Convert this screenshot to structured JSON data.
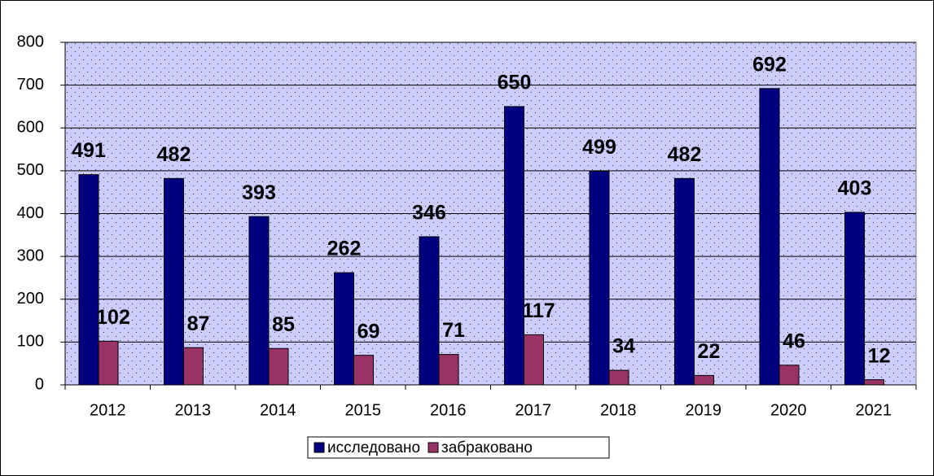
{
  "chart_data": {
    "type": "bar",
    "categories": [
      "2012",
      "2013",
      "2014",
      "2015",
      "2016",
      "2017",
      "2018",
      "2019",
      "2020",
      "2021"
    ],
    "series": [
      {
        "name": "исследовано",
        "color": "#000080",
        "values": [
          491,
          482,
          393,
          262,
          346,
          650,
          499,
          482,
          692,
          403
        ]
      },
      {
        "name": "забраковано",
        "color": "#993366",
        "values": [
          102,
          87,
          85,
          69,
          71,
          117,
          34,
          22,
          46,
          12
        ]
      }
    ],
    "ylim": [
      0,
      800
    ],
    "yticks": [
      0,
      100,
      200,
      300,
      400,
      500,
      600,
      700,
      800
    ],
    "grid": true,
    "legend": "bottom"
  }
}
